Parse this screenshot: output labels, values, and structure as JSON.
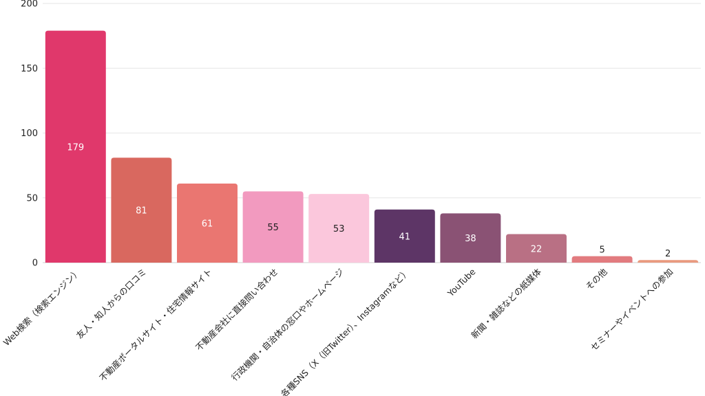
{
  "chart_data": {
    "type": "bar",
    "title": "",
    "xlabel": "",
    "ylabel": "",
    "ylim": [
      0,
      200
    ],
    "yticks": [
      "0",
      "50",
      "100",
      "150",
      "200"
    ],
    "grid": true,
    "categories": [
      "Web検索（検索エンジン）",
      "友人・知人からの口コミ",
      "不動産ポータルサイト・住宅情報サイト",
      "不動産会社に直接問い合わせ",
      "行政機関・自治体の窓口やホームページ",
      "各種SNS（X（旧Twitter）、Instagramなど）",
      "YouTube",
      "新聞・雑誌などの紙媒体",
      "その他",
      "セミナーやイベントへの参加"
    ],
    "values": [
      179,
      81,
      61,
      55,
      53,
      41,
      38,
      22,
      5,
      2
    ],
    "value_labels": [
      "179",
      "81",
      "61",
      "55",
      "53",
      "41",
      "38",
      "22",
      "5",
      "2"
    ],
    "colors": [
      "#e0386b",
      "#d9685f",
      "#ea7671",
      "#f29abf",
      "#fbc7dc",
      "#5d3566",
      "#8a5274",
      "#b97084",
      "#e27b7f",
      "#e99a7f"
    ],
    "label_colors": [
      "#ffffff",
      "#ffffff",
      "#ffffff",
      "#222222",
      "#222222",
      "#ffffff",
      "#ffffff",
      "#ffffff",
      "#222222",
      "#222222"
    ]
  }
}
